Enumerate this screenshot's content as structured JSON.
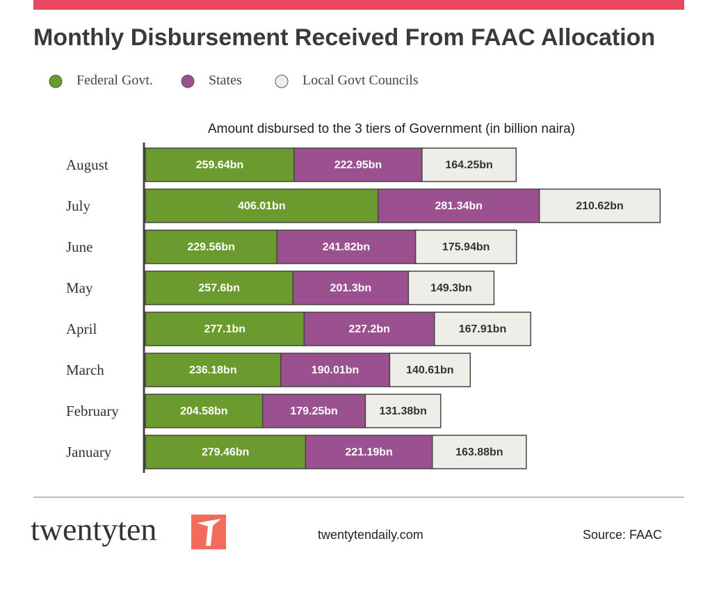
{
  "chart_data": {
    "type": "stacked-bar-horizontal",
    "title": "Monthly Disbursement Received From FAAC Allocation",
    "subtitle": "Amount disbursed to the 3 tiers of Government (in billion naira)",
    "categories": [
      "August",
      "July",
      "June",
      "May",
      "April",
      "March",
      "February",
      "January"
    ],
    "series": [
      {
        "name": "Federal Govt.",
        "color": "#6b9b2f",
        "values": [
          259.64,
          406.01,
          229.56,
          257.6,
          277.1,
          236.18,
          204.58,
          279.46
        ],
        "value_labels": [
          "259.64bn",
          "406.01bn",
          "229.56bn",
          "257.6bn",
          "277.1bn",
          "236.18bn",
          "204.58bn",
          "279.46bn"
        ]
      },
      {
        "name": "States",
        "color": "#9b508f",
        "values": [
          222.95,
          281.34,
          241.82,
          201.3,
          227.2,
          190.01,
          179.25,
          221.19
        ],
        "value_labels": [
          "222.95bn",
          "281.34bn",
          "241.82bn",
          "201.3bn",
          "227.2bn",
          "190.01bn",
          "179.25bn",
          "221.19bn"
        ]
      },
      {
        "name": "Local Govt Councils",
        "color": "#efede8",
        "values": [
          164.25,
          210.62,
          175.94,
          149.3,
          167.91,
          140.61,
          131.38,
          163.88
        ],
        "value_labels": [
          "164.25bn",
          "210.62bn",
          "175.94bn",
          "149.3bn",
          "167.91bn",
          "140.61bn",
          "131.38bn",
          "163.88bn"
        ]
      }
    ],
    "xlim": [
      0,
      900
    ],
    "brand": "twentyten",
    "website": "twentytendaily.com",
    "source": "Source: FAAC"
  }
}
